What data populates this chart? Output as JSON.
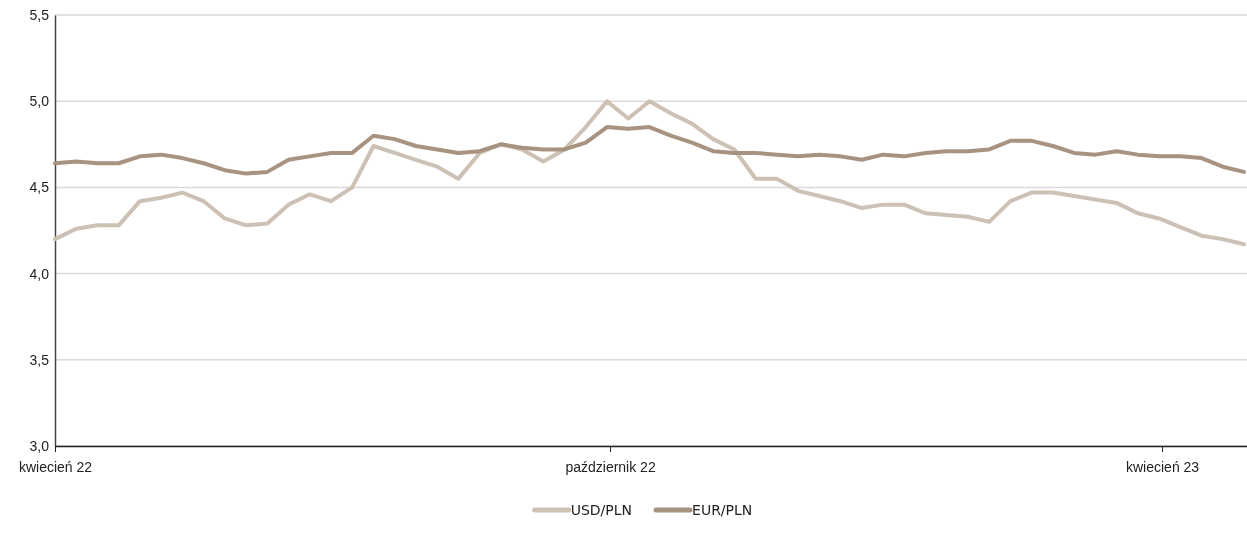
{
  "chart_data": {
    "type": "line",
    "x": [
      "2022-04-01",
      "2022-04-08",
      "2022-04-15",
      "2022-04-22",
      "2022-04-29",
      "2022-05-06",
      "2022-05-13",
      "2022-05-20",
      "2022-05-27",
      "2022-06-03",
      "2022-06-10",
      "2022-06-17",
      "2022-06-24",
      "2022-07-01",
      "2022-07-08",
      "2022-07-15",
      "2022-07-22",
      "2022-07-29",
      "2022-08-05",
      "2022-08-12",
      "2022-08-19",
      "2022-08-26",
      "2022-09-02",
      "2022-09-09",
      "2022-09-16",
      "2022-09-23",
      "2022-09-30",
      "2022-10-07",
      "2022-10-14",
      "2022-10-21",
      "2022-10-28",
      "2022-11-04",
      "2022-11-11",
      "2022-11-18",
      "2022-11-25",
      "2022-12-02",
      "2022-12-09",
      "2022-12-16",
      "2022-12-23",
      "2022-12-30",
      "2023-01-06",
      "2023-01-13",
      "2023-01-20",
      "2023-01-27",
      "2023-02-03",
      "2023-02-10",
      "2023-02-17",
      "2023-02-24",
      "2023-03-03",
      "2023-03-10",
      "2023-03-17",
      "2023-03-24",
      "2023-03-31",
      "2023-04-07",
      "2023-04-14",
      "2023-04-21",
      "2023-04-28"
    ],
    "series": [
      {
        "name": "USD/PLN",
        "color": "#cdc0b4",
        "values": [
          4.2,
          4.26,
          4.28,
          4.28,
          4.42,
          4.44,
          4.47,
          4.42,
          4.32,
          4.28,
          4.29,
          4.4,
          4.46,
          4.42,
          4.5,
          4.74,
          4.7,
          4.66,
          4.62,
          4.55,
          4.7,
          4.75,
          4.72,
          4.65,
          4.72,
          4.85,
          5.0,
          4.9,
          5.0,
          4.93,
          4.87,
          4.78,
          4.72,
          4.55,
          4.55,
          4.48,
          4.45,
          4.42,
          4.38,
          4.4,
          4.4,
          4.35,
          4.34,
          4.33,
          4.3,
          4.42,
          4.47,
          4.47,
          4.45,
          4.43,
          4.41,
          4.35,
          4.32,
          4.27,
          4.22,
          4.2,
          4.17
        ]
      },
      {
        "name": "EUR/PLN",
        "color": "#a89380",
        "values": [
          4.64,
          4.65,
          4.64,
          4.64,
          4.68,
          4.69,
          4.67,
          4.64,
          4.6,
          4.58,
          4.59,
          4.66,
          4.68,
          4.7,
          4.7,
          4.8,
          4.78,
          4.74,
          4.72,
          4.7,
          4.71,
          4.75,
          4.73,
          4.72,
          4.72,
          4.76,
          4.85,
          4.84,
          4.85,
          4.8,
          4.76,
          4.71,
          4.7,
          4.7,
          4.69,
          4.68,
          4.69,
          4.68,
          4.66,
          4.69,
          4.68,
          4.7,
          4.71,
          4.71,
          4.72,
          4.77,
          4.77,
          4.74,
          4.7,
          4.69,
          4.71,
          4.69,
          4.68,
          4.68,
          4.67,
          4.62,
          4.59
        ]
      }
    ],
    "xlim": [
      "2022-04-01",
      "2023-04-29"
    ],
    "xticks": [
      {
        "value": "2022-04-01",
        "label": "kwiecień 22"
      },
      {
        "value": "2022-10-01",
        "label": "październik 22"
      },
      {
        "value": "2023-04-01",
        "label": "kwiecień 23"
      }
    ],
    "ylim": [
      3.0,
      5.5
    ],
    "yticks": [
      {
        "value": 3.0,
        "label": "3,0"
      },
      {
        "value": 3.5,
        "label": "3,5"
      },
      {
        "value": 4.0,
        "label": "4,0"
      },
      {
        "value": 4.5,
        "label": "4,5"
      },
      {
        "value": 5.0,
        "label": "5,0"
      },
      {
        "value": 5.5,
        "label": "5,5"
      }
    ],
    "grid": "y",
    "legend": "bottom",
    "marker": "none",
    "line_style": "solid"
  }
}
